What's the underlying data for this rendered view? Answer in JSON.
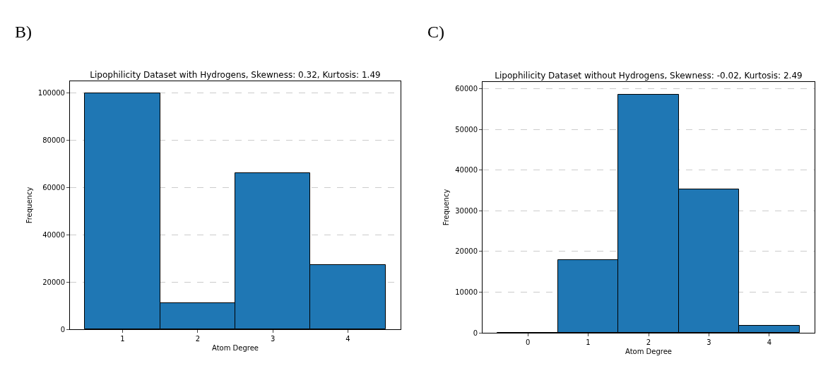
{
  "chart_data": [
    {
      "type": "histogram",
      "title": "Lipophilicity Dataset with Hydrogens, Skewness: 0.32, Kurtosis: 1.49",
      "xlabel": "Atom Degree",
      "ylabel": "Frequency",
      "annotations": [
        "B)"
      ],
      "bins": [
        0.5,
        1.5,
        2.5,
        3.5,
        4.5
      ],
      "values": [
        99800,
        11000,
        66000,
        27200
      ],
      "color": "#1f77b4",
      "xlim": [
        0.3,
        4.7
      ],
      "xticks": [
        1,
        2,
        3,
        4
      ],
      "ylim": [
        0,
        105000
      ],
      "yticks": [
        0,
        20000,
        40000,
        60000,
        80000,
        100000
      ],
      "grid": "y"
    },
    {
      "type": "histogram",
      "title": "Lipophilicity Dataset without Hydrogens, Skewness: -0.02, Kurtosis: 2.49",
      "xlabel": "Atom Degree",
      "ylabel": "Frequency",
      "annotations": [
        "C)"
      ],
      "bins": [
        -0.5,
        0.5,
        1.5,
        2.5,
        3.5,
        4.5
      ],
      "values": [
        0,
        17900,
        58600,
        35200,
        1700
      ],
      "color": "#1f77b4",
      "xlim": [
        -0.75,
        4.75
      ],
      "xticks": [
        0,
        1,
        2,
        3,
        4
      ],
      "ylim": [
        0,
        61700
      ],
      "yticks": [
        0,
        10000,
        20000,
        30000,
        40000,
        50000,
        60000
      ],
      "grid": "y"
    }
  ]
}
